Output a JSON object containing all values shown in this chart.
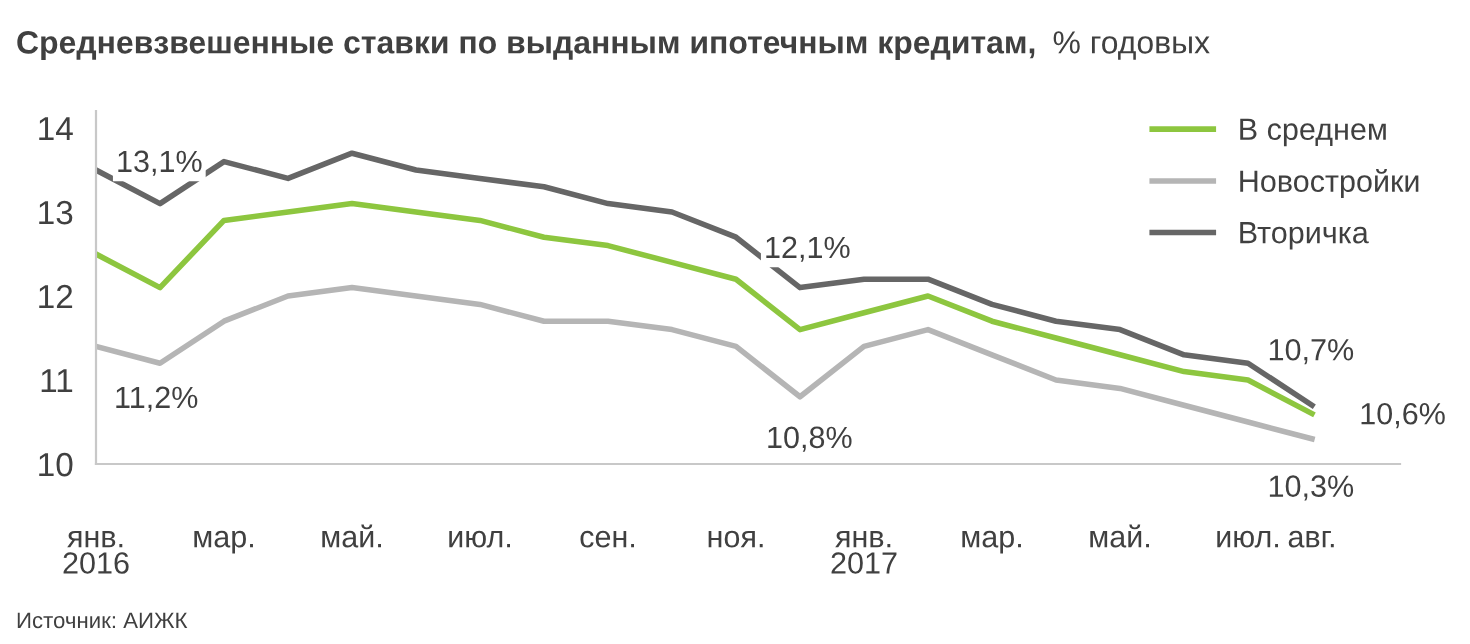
{
  "chart_data": {
    "type": "line",
    "title": "Средневзвешенные ставки по выданным ипотечным кредитам,",
    "subtitle": "% годовых",
    "categories": [
      "янв.\n2016",
      null,
      "мар.",
      null,
      "май.",
      null,
      "июл.",
      null,
      "сен.",
      null,
      "ноя.",
      null,
      "янв.\n2017",
      null,
      "мар.",
      null,
      "май.",
      null,
      "июл.",
      "авг."
    ],
    "series": [
      {
        "name": "В среднем",
        "color": "#8dc63f",
        "values": [
          12.5,
          12.1,
          12.9,
          13.0,
          13.1,
          13.0,
          12.9,
          12.7,
          12.6,
          12.4,
          12.2,
          11.6,
          11.8,
          12.0,
          11.7,
          11.5,
          11.3,
          11.1,
          11.0,
          10.6
        ]
      },
      {
        "name": "Новостройки",
        "color": "#b5b5b5",
        "values": [
          11.4,
          11.2,
          11.7,
          12.0,
          12.1,
          12.0,
          11.9,
          11.7,
          11.7,
          11.6,
          11.4,
          10.8,
          11.4,
          11.6,
          11.3,
          11.0,
          10.9,
          10.7,
          10.5,
          10.3
        ]
      },
      {
        "name": "Вторичка",
        "color": "#666666",
        "values": [
          13.5,
          13.1,
          13.6,
          13.4,
          13.7,
          13.5,
          13.4,
          13.3,
          13.1,
          13.0,
          12.7,
          12.1,
          12.2,
          12.2,
          11.9,
          11.7,
          11.6,
          11.3,
          11.2,
          10.7
        ]
      }
    ],
    "ylim": [
      10,
      14.2
    ],
    "yticks": [
      10,
      11,
      12,
      13,
      14
    ],
    "grid": false,
    "legend": "top right",
    "marker": "none",
    "line_style": "solid",
    "annotations": [
      "13,1%",
      "11,2%",
      "12,1%",
      "10,8%",
      {
        "text": "10,7%",
        "x": "авг.",
        "y": 10.7
      },
      {
        "text": "10,6%",
        "x": "авг.",
        "y": 10.6
      },
      {
        "text": "10,3%",
        "x": "авг.",
        "y": 10.3
      },
      "Источник: АИЖК"
    ]
  }
}
